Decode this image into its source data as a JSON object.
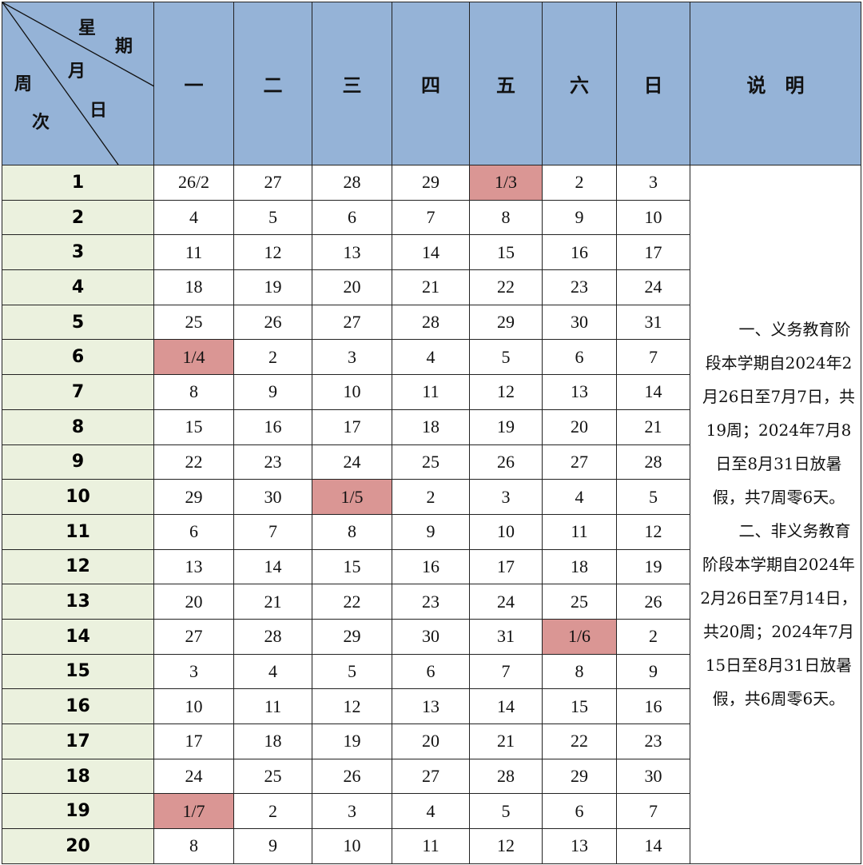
{
  "header": {
    "corner": {
      "xingqi_1": "星",
      "xingqi_2": "期",
      "yueri_1": "月",
      "yueri_2": "日",
      "zhouci_1": "周",
      "zhouci_2": "次"
    },
    "days": [
      "一",
      "二",
      "三",
      "四",
      "五",
      "六",
      "日"
    ],
    "notes_label": "说　明"
  },
  "rows": [
    {
      "week": "1",
      "days": [
        "26/2",
        "27",
        "28",
        "29",
        "1/3",
        "2",
        "3"
      ]
    },
    {
      "week": "2",
      "days": [
        "4",
        "5",
        "6",
        "7",
        "8",
        "9",
        "10"
      ]
    },
    {
      "week": "3",
      "days": [
        "11",
        "12",
        "13",
        "14",
        "15",
        "16",
        "17"
      ]
    },
    {
      "week": "4",
      "days": [
        "18",
        "19",
        "20",
        "21",
        "22",
        "23",
        "24"
      ]
    },
    {
      "week": "5",
      "days": [
        "25",
        "26",
        "27",
        "28",
        "29",
        "30",
        "31"
      ]
    },
    {
      "week": "6",
      "days": [
        "1/4",
        "2",
        "3",
        "4",
        "5",
        "6",
        "7"
      ]
    },
    {
      "week": "7",
      "days": [
        "8",
        "9",
        "10",
        "11",
        "12",
        "13",
        "14"
      ]
    },
    {
      "week": "8",
      "days": [
        "15",
        "16",
        "17",
        "18",
        "19",
        "20",
        "21"
      ]
    },
    {
      "week": "9",
      "days": [
        "22",
        "23",
        "24",
        "25",
        "26",
        "27",
        "28"
      ]
    },
    {
      "week": "10",
      "days": [
        "29",
        "30",
        "1/5",
        "2",
        "3",
        "4",
        "5"
      ]
    },
    {
      "week": "11",
      "days": [
        "6",
        "7",
        "8",
        "9",
        "10",
        "11",
        "12"
      ]
    },
    {
      "week": "12",
      "days": [
        "13",
        "14",
        "15",
        "16",
        "17",
        "18",
        "19"
      ]
    },
    {
      "week": "13",
      "days": [
        "20",
        "21",
        "22",
        "23",
        "24",
        "25",
        "26"
      ]
    },
    {
      "week": "14",
      "days": [
        "27",
        "28",
        "29",
        "30",
        "31",
        "1/6",
        "2"
      ]
    },
    {
      "week": "15",
      "days": [
        "3",
        "4",
        "5",
        "6",
        "7",
        "8",
        "9"
      ]
    },
    {
      "week": "16",
      "days": [
        "10",
        "11",
        "12",
        "13",
        "14",
        "15",
        "16"
      ]
    },
    {
      "week": "17",
      "days": [
        "17",
        "18",
        "19",
        "20",
        "21",
        "22",
        "23"
      ]
    },
    {
      "week": "18",
      "days": [
        "24",
        "25",
        "26",
        "27",
        "28",
        "29",
        "30"
      ]
    },
    {
      "week": "19",
      "days": [
        "1/7",
        "2",
        "3",
        "4",
        "5",
        "6",
        "7"
      ]
    },
    {
      "week": "20",
      "days": [
        "8",
        "9",
        "10",
        "11",
        "12",
        "13",
        "14"
      ]
    }
  ],
  "highlighted_cells": [
    [
      0,
      4
    ],
    [
      5,
      0
    ],
    [
      9,
      2
    ],
    [
      13,
      5
    ],
    [
      18,
      0
    ]
  ],
  "colors": {
    "header": "#95b3d7",
    "week_column": "#ebf1de",
    "month_start_highlight": "#da9694"
  },
  "notes": [
    "一、义务教育阶段本学期自2024年2月26日至7月7日，共19周；2024年7月8日至8月31日放暑假，共7周零6天。",
    "二、非义务教育阶段本学期自2024年2月26日至7月14日，共20周；2024年7月15日至8月31日放暑假，共6周零6天。"
  ]
}
